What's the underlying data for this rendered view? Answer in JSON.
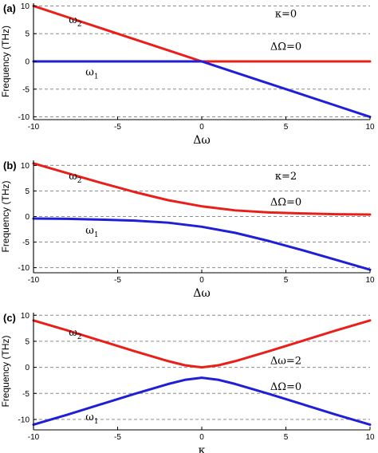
{
  "chart_data": [
    {
      "type": "line",
      "panel_label": "(a)",
      "xlabel": "Δω",
      "ylabel": "Frequency (THz)",
      "xlim": [
        -10,
        10
      ],
      "ylim": [
        -10.5,
        10.5
      ],
      "xticks": [
        -10,
        -5,
        0,
        5,
        10
      ],
      "yticks": [
        10,
        5,
        0,
        -5,
        -10
      ],
      "grid_y": [
        10,
        5,
        0,
        -5,
        -10
      ],
      "annotations": [
        "κ=0",
        "ΔΩ=0"
      ],
      "series": [
        {
          "name": "ω",
          "subscript": "2",
          "color": "#e8201c",
          "x": [
            -10,
            -8,
            -6,
            -4,
            -2,
            0,
            2,
            4,
            6,
            8,
            10
          ],
          "y": [
            10,
            8,
            6,
            4,
            2,
            0,
            0,
            0,
            0,
            0,
            0
          ]
        },
        {
          "name": "ω",
          "subscript": "1",
          "color": "#1f1fd6",
          "x": [
            -10,
            -8,
            -6,
            -4,
            -2,
            0,
            2,
            4,
            6,
            8,
            10
          ],
          "y": [
            0,
            0,
            0,
            0,
            0,
            0,
            -2,
            -4,
            -6,
            -8,
            -10
          ]
        }
      ]
    },
    {
      "type": "line",
      "panel_label": "(b)",
      "xlabel": "Δω",
      "ylabel": "Frequency (THz)",
      "xlim": [
        -10,
        10
      ],
      "ylim": [
        -11,
        11
      ],
      "xticks": [
        -10,
        -5,
        0,
        5,
        10
      ],
      "yticks": [
        10,
        5,
        0,
        -5,
        -10
      ],
      "grid_y": [
        10,
        5,
        0,
        -5,
        -10
      ],
      "annotations": [
        "κ=2",
        "ΔΩ=0"
      ],
      "series": [
        {
          "name": "ω",
          "subscript": "2",
          "color": "#e8201c",
          "x": [
            -10,
            -8,
            -6,
            -4,
            -2,
            0,
            2,
            4,
            6,
            8,
            10
          ],
          "y": [
            10.4,
            8.5,
            6.6,
            4.8,
            3.2,
            2.0,
            1.2,
            0.8,
            0.6,
            0.45,
            0.4
          ]
        },
        {
          "name": "ω",
          "subscript": "1",
          "color": "#1f1fd6",
          "x": [
            -10,
            -8,
            -6,
            -4,
            -2,
            0,
            2,
            4,
            6,
            8,
            10
          ],
          "y": [
            -0.4,
            -0.45,
            -0.6,
            -0.8,
            -1.2,
            -2.0,
            -3.2,
            -4.8,
            -6.6,
            -8.5,
            -10.4
          ]
        }
      ]
    },
    {
      "type": "line",
      "panel_label": "(c)",
      "xlabel": "κ",
      "ylabel": "Frequency (THz)",
      "xlim": [
        -10,
        10
      ],
      "ylim": [
        -12,
        10.5
      ],
      "xticks": [
        -10,
        -5,
        0,
        5,
        10
      ],
      "yticks": [
        10,
        5,
        0,
        -5,
        -10
      ],
      "grid_y": [
        10,
        5,
        0,
        -5,
        -10
      ],
      "annotations": [
        "Δω=2",
        "ΔΩ=0"
      ],
      "series": [
        {
          "name": "ω",
          "subscript": "2",
          "color": "#e8201c",
          "x": [
            -10,
            -8,
            -6,
            -4,
            -2,
            -1,
            0,
            1,
            2,
            4,
            6,
            8,
            10
          ],
          "y": [
            9.0,
            7.1,
            5.1,
            3.1,
            1.2,
            0.4,
            0.0,
            0.4,
            1.2,
            3.1,
            5.1,
            7.1,
            9.0
          ]
        },
        {
          "name": "ω",
          "subscript": "1",
          "color": "#1f1fd6",
          "x": [
            -10,
            -8,
            -6,
            -4,
            -2,
            -1,
            0,
            1,
            2,
            4,
            6,
            8,
            10
          ],
          "y": [
            -11.0,
            -9.1,
            -7.1,
            -5.1,
            -3.2,
            -2.4,
            -2.0,
            -2.4,
            -3.2,
            -5.1,
            -7.1,
            -9.1,
            -11.0
          ]
        }
      ]
    }
  ]
}
